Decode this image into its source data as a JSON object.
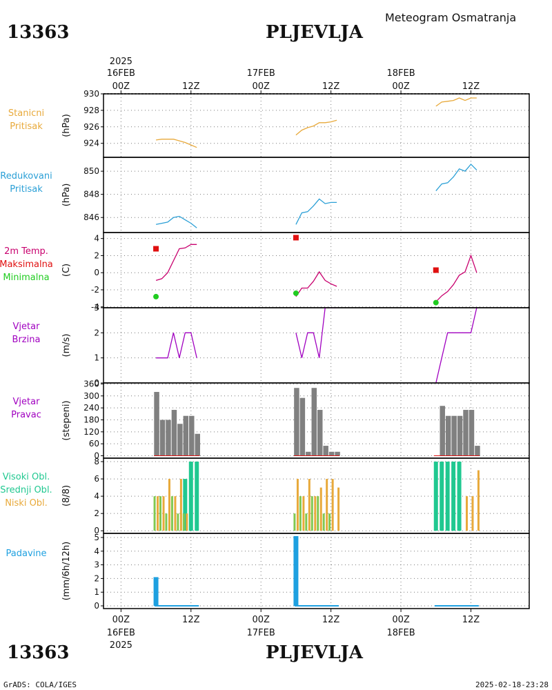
{
  "header": {
    "station_id": "13363",
    "station_name": "PLJEVLJA",
    "title": "Meteogram Osmatranja"
  },
  "footer": {
    "left": "GrADS: COLA/IGES",
    "right": "2025-02-18-23:28"
  },
  "colors": {
    "stanicni": "#e8a93a",
    "redukovani": "#2a9fd6",
    "temp": "#c8006e",
    "tmax": "#e01010",
    "tmin": "#20cc20",
    "vjetar": "#a000c0",
    "pravac_bar": "#808080",
    "visoki": "#20c890",
    "srednji": "#80c850",
    "niski": "#e8a93a",
    "padavine": "#1ea0e0"
  },
  "time_axis": {
    "top": {
      "year": "2025",
      "dates": [
        {
          "t": 0,
          "date": "16FEB",
          "hour": "00Z"
        },
        {
          "t": 12,
          "hour": "12Z"
        },
        {
          "t": 24,
          "date": "17FEB",
          "hour": "00Z"
        },
        {
          "t": 36,
          "hour": "12Z"
        },
        {
          "t": 48,
          "date": "18FEB",
          "hour": "00Z"
        },
        {
          "t": 60,
          "hour": "12Z"
        }
      ]
    },
    "bottom": {
      "year": "2025",
      "dates": [
        {
          "t": 0,
          "date": "16FEB",
          "hour": "00Z"
        },
        {
          "t": 12,
          "hour": "12Z"
        },
        {
          "t": 24,
          "date": "17FEB",
          "hour": "00Z"
        },
        {
          "t": 36,
          "hour": "12Z"
        },
        {
          "t": 48,
          "date": "18FEB",
          "hour": "00Z"
        },
        {
          "t": 60,
          "hour": "12Z"
        }
      ]
    },
    "range_hours": [
      -3,
      70
    ]
  },
  "panel_labels": {
    "p1": {
      "line1": "Stanicni",
      "line2": "Pritisak",
      "unit": "(hPa)"
    },
    "p2": {
      "line1": "Redukovani",
      "line2": "Pritisak",
      "unit": "(hPa)"
    },
    "p3": {
      "line1": "2m Temp.",
      "line2": "Maksimalna",
      "line3": "Minimalna",
      "unit": "(C)"
    },
    "p4": {
      "line1": "Vjetar",
      "line2": "Brzina",
      "unit": "(m/s)"
    },
    "p5": {
      "line1": "Vjetar",
      "line2": "Pravac",
      "unit": "(stepeni)"
    },
    "p6": {
      "line1": "Visoki Obl.",
      "line2": "Srednji Obl.",
      "line3": "Niski Obl.",
      "unit": "(8/8)"
    },
    "p7": {
      "line1": "Padavine",
      "unit": "(mm/6h/12h)"
    }
  },
  "chart_data": [
    {
      "type": "line",
      "name": "Stanicni Pritisak",
      "ylabel": "(hPa)",
      "ylim": [
        922.3,
        930
      ],
      "yticks": [
        924,
        926,
        928,
        930
      ],
      "grid": true,
      "segments": [
        {
          "x": [
            6,
            7,
            8,
            9,
            10,
            11,
            12,
            13
          ],
          "y": [
            924.4,
            924.5,
            924.5,
            924.5,
            924.3,
            924.1,
            923.8,
            923.5
          ]
        },
        {
          "x": [
            30,
            31,
            32,
            33,
            34,
            35,
            36,
            37
          ],
          "y": [
            925.0,
            925.6,
            925.9,
            926.1,
            926.5,
            926.5,
            926.6,
            926.8
          ]
        },
        {
          "x": [
            54,
            55,
            56,
            57,
            58,
            59,
            60,
            61
          ],
          "y": [
            928.5,
            929.0,
            929.1,
            929.2,
            929.5,
            929.2,
            929.5,
            929.5
          ]
        }
      ]
    },
    {
      "type": "line",
      "name": "Redukovani Pritisak",
      "ylabel": "(hPa)",
      "ylim": [
        844.7,
        851.2
      ],
      "yticks": [
        846,
        848,
        850
      ],
      "grid": true,
      "segments": [
        {
          "x": [
            6,
            7,
            8,
            9,
            10,
            11,
            12,
            13
          ],
          "y": [
            845.4,
            845.5,
            845.6,
            846.0,
            846.1,
            845.8,
            845.5,
            845.1
          ]
        },
        {
          "x": [
            30,
            31,
            32,
            33,
            34,
            35,
            36,
            37
          ],
          "y": [
            845.4,
            846.4,
            846.5,
            847.0,
            847.6,
            847.2,
            847.3,
            847.3
          ]
        },
        {
          "x": [
            54,
            55,
            56,
            57,
            58,
            59,
            60,
            61
          ],
          "y": [
            848.3,
            848.9,
            849.0,
            849.5,
            850.2,
            850.0,
            850.6,
            850.1
          ]
        }
      ]
    },
    {
      "type": "line",
      "name": "2m Temp.",
      "ylabel": "(C)",
      "ylim": [
        -4.1,
        4.7
      ],
      "yticks": [
        -4,
        -2,
        0,
        2,
        4
      ],
      "grid": true,
      "segments": [
        {
          "x": [
            6,
            7,
            8,
            9,
            10,
            11,
            12,
            13
          ],
          "y": [
            -0.9,
            -0.7,
            0.0,
            1.4,
            2.8,
            2.9,
            3.3,
            3.3
          ]
        },
        {
          "x": [
            30,
            31,
            32,
            33,
            34,
            35,
            36,
            37
          ],
          "y": [
            -2.8,
            -1.8,
            -1.8,
            -1.0,
            0.1,
            -0.9,
            -1.3,
            -1.6
          ]
        },
        {
          "x": [
            54,
            55,
            56,
            57,
            58,
            59,
            60,
            61
          ],
          "y": [
            -3.4,
            -2.7,
            -2.2,
            -1.4,
            -0.3,
            0.1,
            2.0,
            0.0
          ]
        }
      ],
      "maksimalna": [
        {
          "x": 6,
          "y": 2.8
        },
        {
          "x": 30,
          "y": 4.1
        },
        {
          "x": 54,
          "y": 0.3
        }
      ],
      "minimalna": [
        {
          "x": 6,
          "y": -2.8
        },
        {
          "x": 30,
          "y": -2.4
        },
        {
          "x": 54,
          "y": -3.5
        }
      ]
    },
    {
      "type": "line",
      "name": "Vjetar Brzina",
      "ylabel": "(m/s)",
      "ylim": [
        0,
        3
      ],
      "yticks": [
        0,
        1,
        2,
        3
      ],
      "grid": true,
      "segments": [
        {
          "x": [
            6,
            7,
            8,
            9,
            10,
            11,
            12,
            13
          ],
          "y": [
            1,
            1,
            1,
            2,
            1,
            2,
            2,
            1
          ]
        },
        {
          "x": [
            30,
            31,
            32,
            33,
            34,
            35,
            36,
            37
          ],
          "y": [
            2,
            1,
            2,
            2,
            1,
            3,
            3,
            3
          ]
        },
        {
          "x": [
            54,
            55,
            56,
            57,
            58,
            59,
            60,
            61
          ],
          "y": [
            0,
            1,
            2,
            2,
            2,
            2,
            2,
            3
          ]
        }
      ]
    },
    {
      "type": "bar",
      "name": "Vjetar Pravac",
      "ylabel": "(stepeni)",
      "ylim": [
        -12,
        365
      ],
      "yticks": [
        0,
        60,
        120,
        180,
        240,
        300,
        360
      ],
      "grid": true,
      "x": [
        6,
        7,
        8,
        9,
        10,
        11,
        12,
        13,
        30,
        31,
        32,
        33,
        34,
        35,
        36,
        37,
        54,
        55,
        56,
        57,
        58,
        59,
        60,
        61
      ],
      "values": [
        320,
        180,
        180,
        230,
        160,
        200,
        200,
        110,
        340,
        290,
        20,
        340,
        230,
        50,
        20,
        20,
        0,
        250,
        200,
        200,
        200,
        230,
        230,
        50
      ]
    },
    {
      "type": "bar",
      "name": "Oblaci",
      "ylabel": "(8/8)",
      "ylim": [
        -0.3,
        8.4
      ],
      "yticks": [
        0,
        2,
        4,
        6,
        8
      ],
      "grid": true,
      "x": [
        6,
        7,
        8,
        9,
        10,
        11,
        12,
        13,
        30,
        31,
        32,
        33,
        34,
        35,
        36,
        37,
        54,
        55,
        56,
        57,
        58,
        59,
        60,
        61
      ],
      "series": [
        {
          "name": "Visoki Obl.",
          "values": [
            0,
            0,
            0,
            0,
            0,
            6,
            8,
            8,
            0,
            0,
            0,
            0,
            0,
            0,
            0,
            0,
            8,
            8,
            8,
            8,
            8,
            0,
            0,
            0
          ]
        },
        {
          "name": "Srednji Obl.",
          "values": [
            4,
            4,
            2,
            4,
            2,
            2,
            0,
            0,
            2,
            4,
            2,
            4,
            4,
            2,
            2,
            0,
            0,
            0,
            0,
            0,
            0,
            0,
            0,
            0
          ]
        },
        {
          "name": "Niski Obl.",
          "values": [
            4,
            4,
            6,
            4,
            6,
            2,
            0,
            0,
            6,
            4,
            6,
            4,
            5,
            6,
            6,
            5,
            0,
            0,
            0,
            0,
            0,
            4,
            4,
            7
          ]
        }
      ]
    },
    {
      "type": "bar",
      "name": "Padavine",
      "ylabel": "(mm/6h/12h)",
      "ylim": [
        -0.2,
        5.3
      ],
      "yticks": [
        0,
        1,
        2,
        3,
        4,
        5
      ],
      "grid": true,
      "x": [
        6,
        30
      ],
      "values": [
        2.1,
        5.1
      ],
      "trace_segments": [
        [
          6,
          13
        ],
        [
          30,
          37
        ],
        [
          54,
          61
        ]
      ]
    }
  ]
}
